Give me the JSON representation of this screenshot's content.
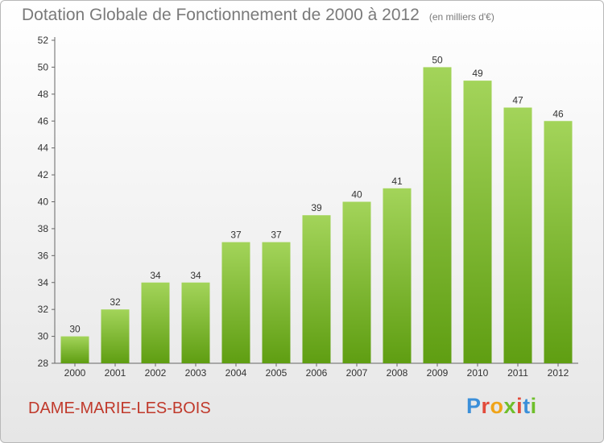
{
  "header": {
    "title": "Dotation Globale de Fonctionnement de 2000 à 2012",
    "unit": "(en milliers d'€)"
  },
  "footer": {
    "commune": "DAME-MARIE-LES-BOIS",
    "logo_text": "Proxiti"
  },
  "colors": {
    "bar_top": "#a3d45a",
    "bar_bottom": "#5f9e12",
    "commune": "#c0392b"
  },
  "chart_data": {
    "type": "bar",
    "title": "Dotation Globale de Fonctionnement de 2000 à 2012",
    "subtitle": "(en milliers d'€)",
    "xlabel": "",
    "ylabel": "",
    "categories": [
      "2000",
      "2001",
      "2002",
      "2003",
      "2004",
      "2005",
      "2006",
      "2007",
      "2008",
      "2009",
      "2010",
      "2011",
      "2012"
    ],
    "values": [
      30,
      32,
      34,
      34,
      37,
      37,
      39,
      40,
      41,
      50,
      49,
      47,
      46
    ],
    "ylim": [
      28,
      52
    ],
    "yticks": [
      28,
      30,
      32,
      34,
      36,
      38,
      40,
      42,
      44,
      46,
      48,
      50,
      52
    ],
    "grid": false,
    "legend": "none"
  }
}
